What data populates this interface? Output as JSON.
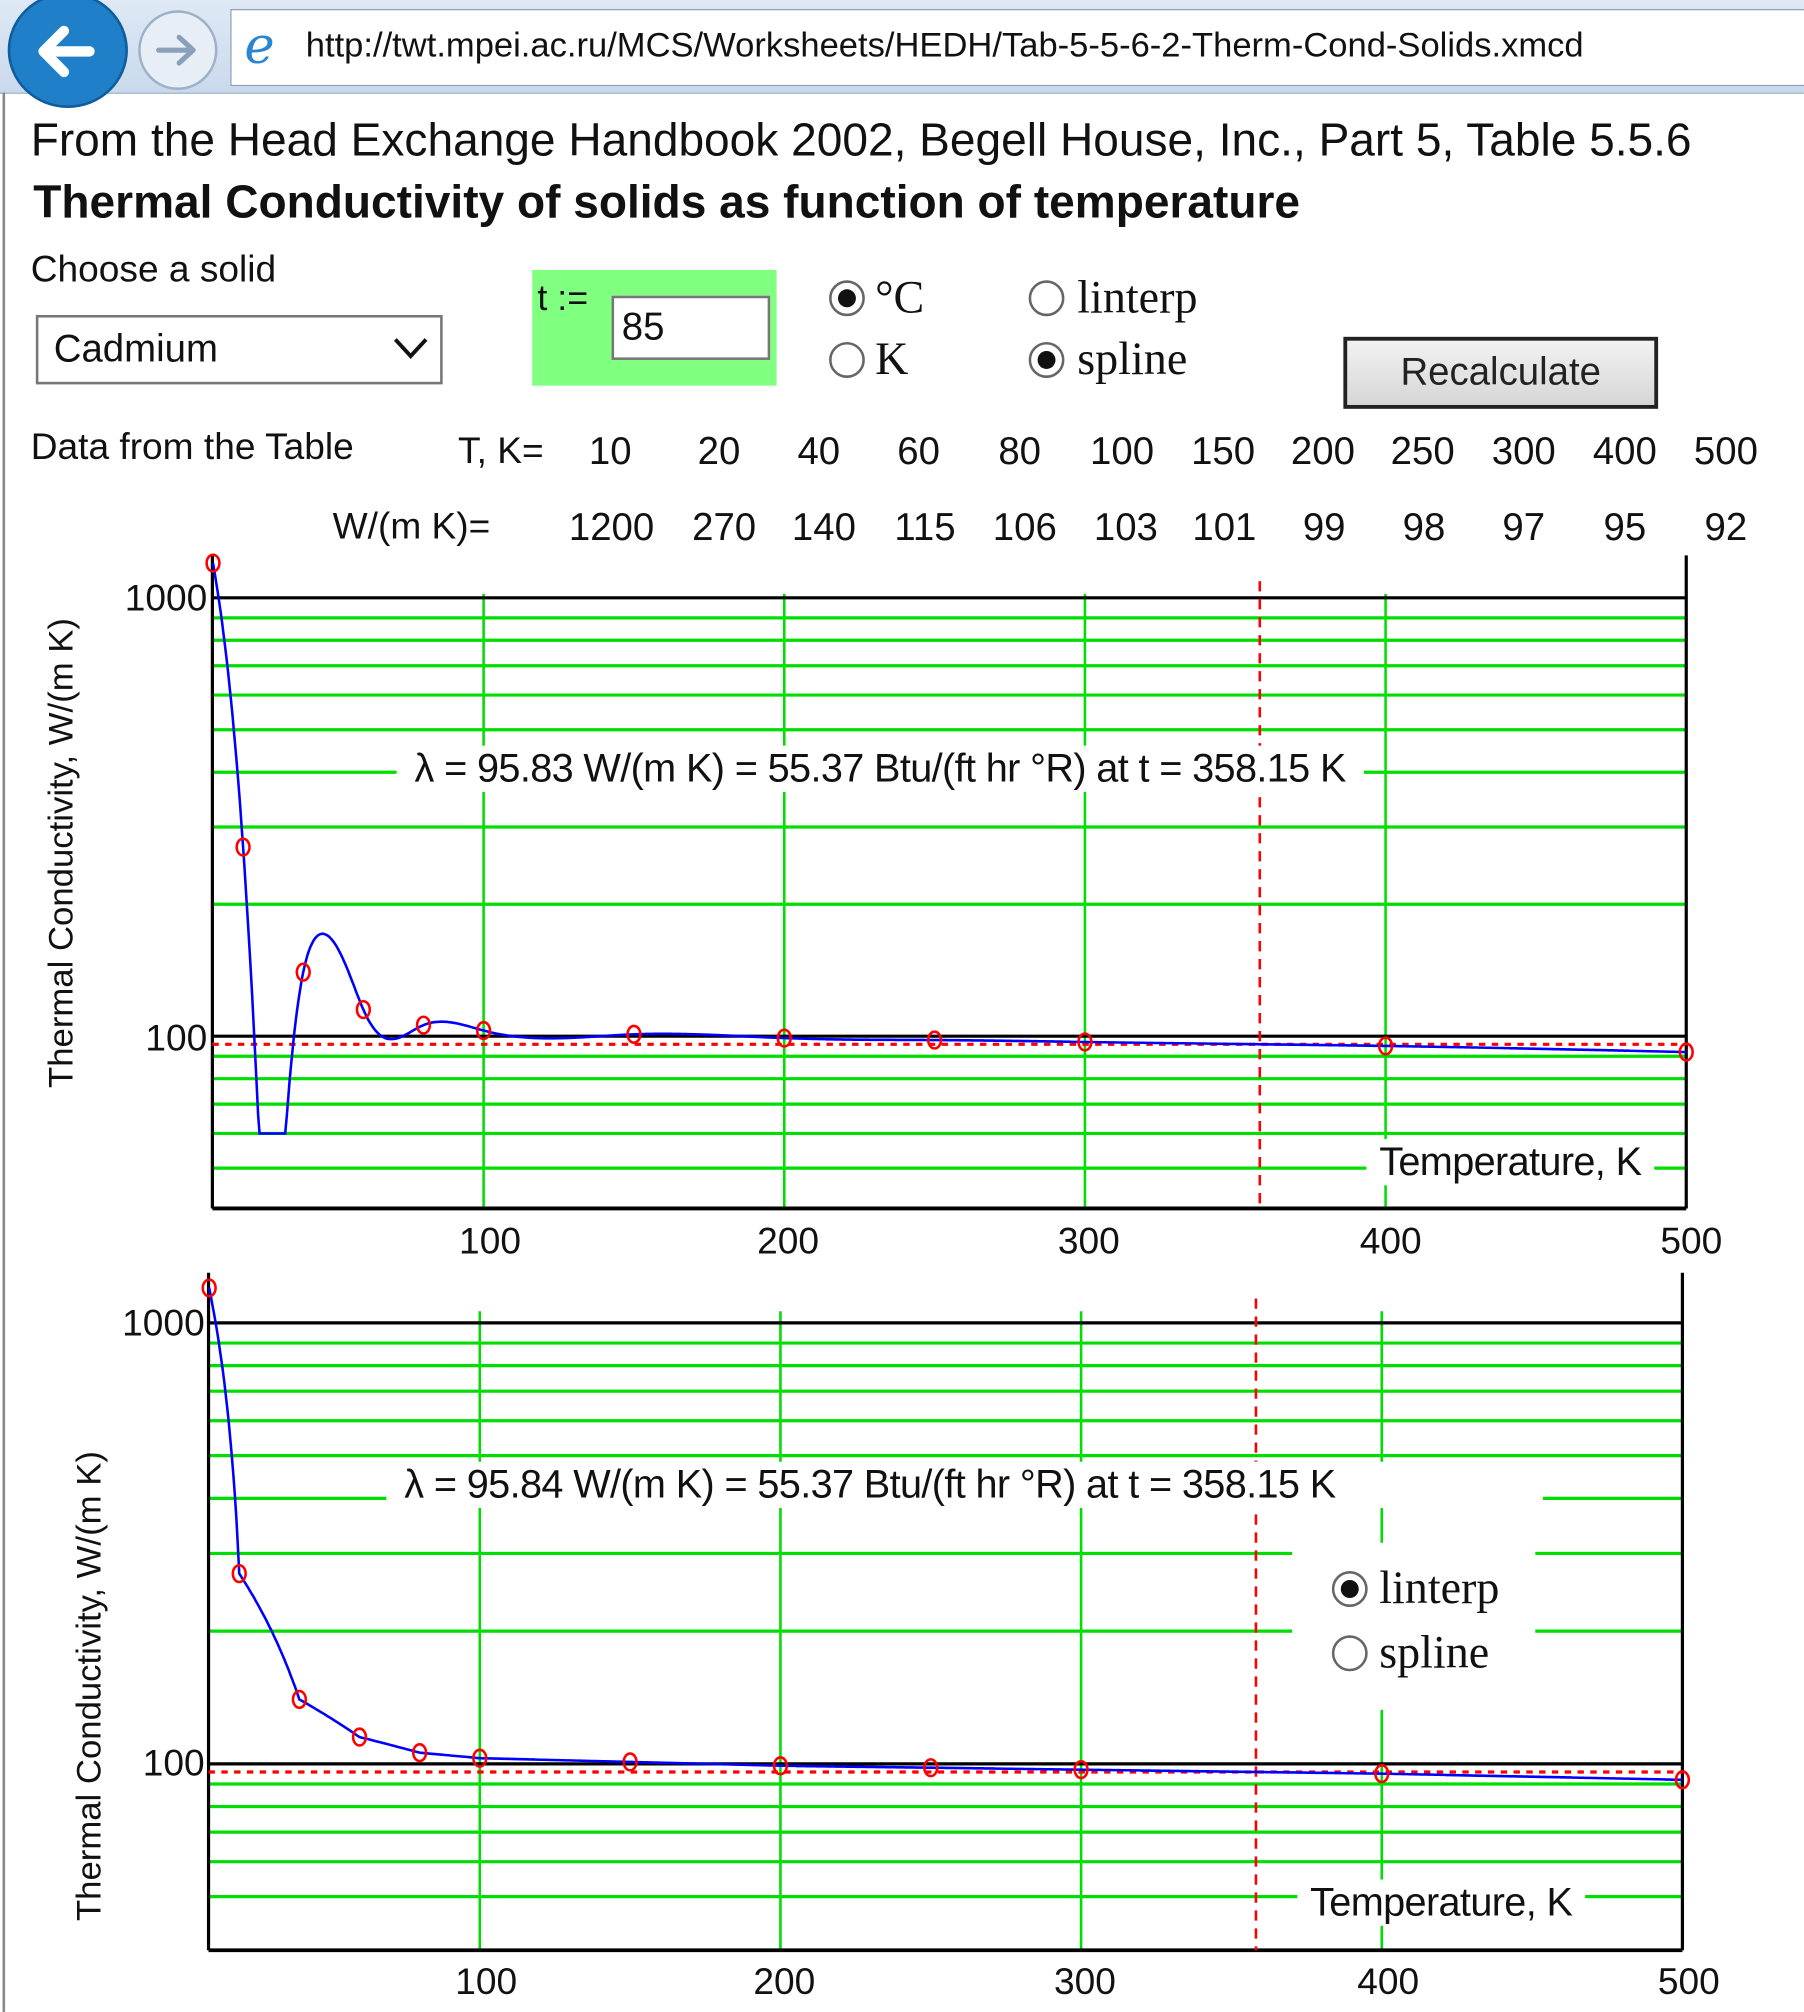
{
  "browser": {
    "url": "http://twt.mpei.ac.ru/MCS/Worksheets/HEDH/Tab-5-5-6-2-Therm-Cond-Solids.xmcd",
    "back_icon": "arrow-left-icon",
    "forward_icon": "arrow-right-icon",
    "ie_icon": "e"
  },
  "header": {
    "source": "From the Head Exchange Handbook 2002, Begell House, Inc., Part 5, Table 5.5.6",
    "title": "Thermal Conductivity of solids as function of temperature"
  },
  "controls": {
    "choose_label": "Choose a solid",
    "solid": "Cadmium",
    "t_label": "t :=",
    "t_value": "85",
    "unit_options": [
      {
        "label": "°C",
        "selected": true
      },
      {
        "label": "K",
        "selected": false
      }
    ],
    "method_options": [
      {
        "label": "linterp",
        "selected": false
      },
      {
        "label": "spline",
        "selected": true
      }
    ],
    "recalculate": "Recalculate",
    "input_bg": "#80ff80"
  },
  "table": {
    "label": "Data from the Table",
    "t_header": "T, K=",
    "k_header": "W/(m K)=",
    "T": [
      "10",
      "20",
      "40",
      "60",
      "80",
      "100",
      "150",
      "200",
      "250",
      "300",
      "400",
      "500"
    ],
    "k": [
      "1200",
      "270",
      "140",
      "115",
      "106",
      "103",
      "101",
      "99",
      "98",
      "97",
      "95",
      "92"
    ]
  },
  "chart_data": [
    {
      "type": "line",
      "method": "spline",
      "x": [
        10,
        20,
        40,
        60,
        80,
        100,
        150,
        200,
        250,
        300,
        400,
        500
      ],
      "y": [
        1200,
        270,
        140,
        115,
        106,
        103,
        101,
        99,
        98,
        97,
        95,
        92
      ],
      "xlabel": "Temperature, K",
      "ylabel": "Thermal Conductivity, W/(m K)",
      "xlim": [
        10,
        500
      ],
      "ylim": [
        40,
        1250
      ],
      "yscale": "log",
      "xticks": [
        "100",
        "200",
        "300",
        "400",
        "500"
      ],
      "yticks": [
        "100",
        "1000"
      ],
      "grid": true,
      "marker_t": 358.15,
      "marker_lambda": 95.83,
      "result": "λ = 95.83 W/(m K) = 55.37 Btu/(ft hr °R)   at t = 358.15 K",
      "colors": {
        "curve": "#0000ff",
        "points": "#ff0000",
        "grid": "#00dd00"
      }
    },
    {
      "type": "line",
      "method": "linterp",
      "x": [
        10,
        20,
        40,
        60,
        80,
        100,
        150,
        200,
        250,
        300,
        400,
        500
      ],
      "y": [
        1200,
        270,
        140,
        115,
        106,
        103,
        101,
        99,
        98,
        97,
        95,
        92
      ],
      "xlabel": "Temperature, K",
      "ylabel": "Thermal Conductivity, W/(m K)",
      "xlim": [
        10,
        500
      ],
      "ylim": [
        38,
        1250
      ],
      "yscale": "log",
      "xticks": [
        "100",
        "200",
        "300",
        "400",
        "500"
      ],
      "yticks": [
        "100",
        "1000"
      ],
      "grid": true,
      "marker_t": 358.15,
      "marker_lambda": 95.84,
      "result": "λ = 95.84 W/(m K)   = 55.37 Btu/(ft hr °R)     at t = 358.15 K",
      "method_options": [
        {
          "label": "linterp",
          "selected": true
        },
        {
          "label": "spline",
          "selected": false
        }
      ],
      "colors": {
        "curve": "#0000ff",
        "points": "#ff0000",
        "grid": "#00dd00"
      }
    }
  ]
}
